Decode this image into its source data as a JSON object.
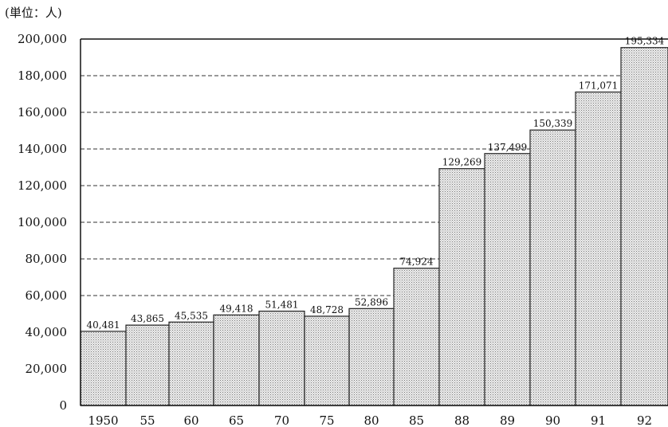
{
  "chart_data": {
    "type": "bar",
    "unit_label": "(単位：人)",
    "categories": [
      "1950",
      "55",
      "60",
      "65",
      "70",
      "75",
      "80",
      "85",
      "88",
      "89",
      "90",
      "91",
      "92"
    ],
    "values": [
      40481,
      43865,
      45535,
      49418,
      51481,
      48728,
      52896,
      74924,
      129269,
      137499,
      150339,
      171071,
      195334
    ],
    "data_labels": [
      "40,481",
      "43,865",
      "45,535",
      "49,418",
      "51,481",
      "48,728",
      "52,896",
      "74,924",
      "129,269",
      "137,499",
      "150,339",
      "171,071",
      "195,334"
    ],
    "yticks": [
      0,
      20000,
      40000,
      60000,
      80000,
      100000,
      120000,
      140000,
      160000,
      180000,
      200000
    ],
    "ytick_labels": [
      "0",
      "20,000",
      "40,000",
      "60,000",
      "80,000",
      "100,000",
      "120,000",
      "140,000",
      "160,000",
      "180,000",
      "200,000"
    ],
    "ylim": [
      0,
      200000
    ],
    "grid": "horizontal dashed",
    "bar_fill": "dotted light gray",
    "title": "",
    "xlabel": "",
    "ylabel": ""
  }
}
